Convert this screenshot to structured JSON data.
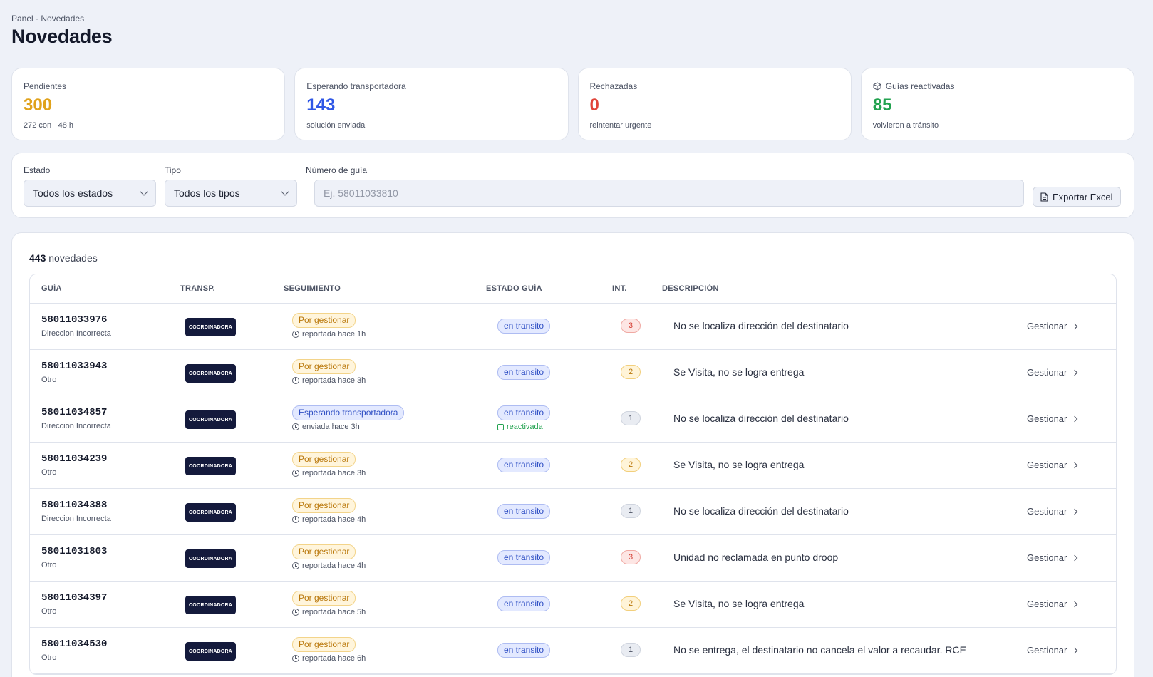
{
  "breadcrumb": "Panel · Novedades",
  "title": "Novedades",
  "cards": [
    {
      "label": "Pendientes",
      "value": "300",
      "sub": "272 con +48 h",
      "color": "#e0a21b"
    },
    {
      "label": "Esperando transportadora",
      "value": "143",
      "sub": "solución enviada",
      "color": "#2f57e6"
    },
    {
      "label": "Rechazadas",
      "value": "0",
      "sub": "reintentar urgente",
      "color": "#e0453a"
    },
    {
      "label": "Guías reactivadas",
      "value": "85",
      "sub": "volvieron a tránsito",
      "color": "#22a24f",
      "icon": "cube-icon"
    }
  ],
  "filters": {
    "estado_label": "Estado",
    "estado_value": "Todos los estados",
    "tipo_label": "Tipo",
    "tipo_value": "Todos los tipos",
    "guia_label": "Número de guía",
    "guia_placeholder": "Ej. 58011033810",
    "export_label": "Exportar Excel"
  },
  "table": {
    "count": "443",
    "count_suffix": "novedades",
    "headers": [
      "GUÍA",
      "TRANSP.",
      "SEGUIMIENTO",
      "ESTADO GUÍA",
      "INT.",
      "DESCRIPCIÓN"
    ],
    "carrier_logo_text": "COORDINADORA",
    "action_label": "Gestionar",
    "rows": [
      {
        "guia": "58011033976",
        "tipo": "Direccion Incorrecta",
        "seguimiento": "Por gestionar",
        "seg_sub": "reportada hace 1h",
        "estado": "en transito",
        "reactivada": "",
        "int": "3",
        "desc": "No se localiza dirección del destinatario"
      },
      {
        "guia": "58011033943",
        "tipo": "Otro",
        "seguimiento": "Por gestionar",
        "seg_sub": "reportada hace 3h",
        "estado": "en transito",
        "reactivada": "",
        "int": "2",
        "desc": "Se Visita, no se logra entrega"
      },
      {
        "guia": "58011034857",
        "tipo": "Direccion Incorrecta",
        "seguimiento": "Esperando transportadora",
        "seg_sub": "enviada hace 3h",
        "estado": "en transito",
        "reactivada": "reactivada",
        "int": "1",
        "desc": "No se localiza dirección del destinatario"
      },
      {
        "guia": "58011034239",
        "tipo": "Otro",
        "seguimiento": "Por gestionar",
        "seg_sub": "reportada hace 3h",
        "estado": "en transito",
        "reactivada": "",
        "int": "2",
        "desc": "Se Visita, no se logra entrega"
      },
      {
        "guia": "58011034388",
        "tipo": "Direccion Incorrecta",
        "seguimiento": "Por gestionar",
        "seg_sub": "reportada hace 4h",
        "estado": "en transito",
        "reactivada": "",
        "int": "1",
        "desc": "No se localiza dirección del destinatario"
      },
      {
        "guia": "58011031803",
        "tipo": "Otro",
        "seguimiento": "Por gestionar",
        "seg_sub": "reportada hace 4h",
        "estado": "en transito",
        "reactivada": "",
        "int": "3",
        "desc": "Unidad no reclamada en punto droop"
      },
      {
        "guia": "58011034397",
        "tipo": "Otro",
        "seguimiento": "Por gestionar",
        "seg_sub": "reportada hace 5h",
        "estado": "en transito",
        "reactivada": "",
        "int": "2",
        "desc": "Se Visita, no se logra entrega"
      },
      {
        "guia": "58011034530",
        "tipo": "Otro",
        "seguimiento": "Por gestionar",
        "seg_sub": "reportada hace 6h",
        "estado": "en transito",
        "reactivada": "",
        "int": "1",
        "desc": "No se entrega, el destinatario no cancela el valor a recaudar. RCE"
      }
    ]
  }
}
